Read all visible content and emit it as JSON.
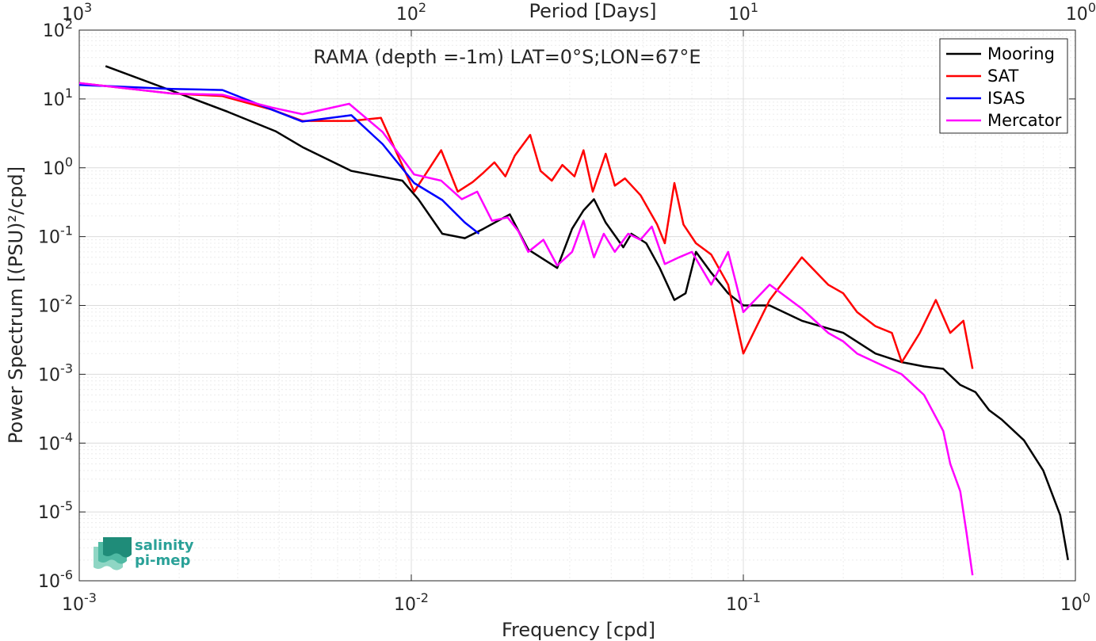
{
  "chart_data": {
    "type": "line",
    "title": "RAMA (depth =-1m) LAT=0°S;LON=67°E",
    "xlabel": "Frequency [cpd]",
    "ylabel": "Power Spectrum [(PSU)²/cpd]",
    "top_xlabel": "Period [Days]",
    "x_scale": "log",
    "y_scale": "log",
    "xlim": [
      0.001,
      1
    ],
    "ylim": [
      1e-06,
      100
    ],
    "grid": true,
    "legend_position": "top-right",
    "x_ticks": [
      "10-3",
      "10-2",
      "10-1",
      "100"
    ],
    "top_ticks": [
      "103",
      "102",
      "101",
      "100"
    ],
    "y_ticks": [
      "10-6",
      "10-5",
      "10-4",
      "10-3",
      "10-2",
      "10-1",
      "100",
      "101",
      "102"
    ],
    "series": [
      {
        "name": "Mooring",
        "color": "#000000",
        "x": [
          0.0012,
          0.002,
          0.0028,
          0.0039,
          0.0047,
          0.0066,
          0.0094,
          0.0105,
          0.0124,
          0.0145,
          0.0165,
          0.0198,
          0.0225,
          0.0275,
          0.0305,
          0.033,
          0.0355,
          0.0385,
          0.0435,
          0.046,
          0.051,
          0.056,
          0.062,
          0.067,
          0.072,
          0.08,
          0.09,
          0.1,
          0.12,
          0.15,
          0.2,
          0.25,
          0.3,
          0.35,
          0.4,
          0.45,
          0.5,
          0.55,
          0.6,
          0.7,
          0.8,
          0.9,
          0.95
        ],
        "y": [
          30,
          12,
          6.5,
          3.4,
          2.0,
          0.9,
          0.65,
          0.35,
          0.11,
          0.095,
          0.13,
          0.21,
          0.065,
          0.035,
          0.13,
          0.24,
          0.35,
          0.16,
          0.07,
          0.11,
          0.08,
          0.035,
          0.012,
          0.015,
          0.06,
          0.03,
          0.015,
          0.01,
          0.01,
          0.006,
          0.004,
          0.002,
          0.0015,
          0.0013,
          0.0012,
          0.0007,
          0.00055,
          0.0003,
          0.00022,
          0.00011,
          4e-05,
          9e-06,
          2e-06
        ]
      },
      {
        "name": "SAT",
        "color": "#ff0000",
        "x": [
          0.001,
          0.0019,
          0.0027,
          0.0038,
          0.0047,
          0.0066,
          0.0081,
          0.0102,
          0.0123,
          0.0138,
          0.0153,
          0.0165,
          0.0178,
          0.0192,
          0.0205,
          0.0228,
          0.0245,
          0.0265,
          0.0285,
          0.031,
          0.033,
          0.0352,
          0.0385,
          0.041,
          0.044,
          0.049,
          0.055,
          0.058,
          0.062,
          0.066,
          0.072,
          0.08,
          0.09,
          0.1,
          0.12,
          0.15,
          0.18,
          0.2,
          0.22,
          0.25,
          0.28,
          0.3,
          0.34,
          0.38,
          0.42,
          0.46,
          0.49
        ],
        "y": [
          17,
          12,
          11,
          7,
          4.8,
          4.8,
          5.3,
          0.45,
          1.8,
          0.45,
          0.62,
          0.85,
          1.2,
          0.75,
          1.5,
          3.0,
          0.9,
          0.65,
          1.1,
          0.75,
          1.8,
          0.45,
          1.6,
          0.55,
          0.7,
          0.4,
          0.15,
          0.08,
          0.6,
          0.15,
          0.08,
          0.055,
          0.02,
          0.002,
          0.012,
          0.05,
          0.02,
          0.015,
          0.008,
          0.005,
          0.004,
          0.0015,
          0.004,
          0.012,
          0.004,
          0.006,
          0.0012
        ]
      },
      {
        "name": "ISAS",
        "color": "#0000ff",
        "x": [
          0.001,
          0.0019,
          0.0027,
          0.0038,
          0.0047,
          0.0066,
          0.0082,
          0.0102,
          0.0124,
          0.0145,
          0.016
        ],
        "y": [
          16,
          14,
          13.5,
          7,
          4.7,
          5.8,
          2.2,
          0.6,
          0.34,
          0.16,
          0.11
        ]
      },
      {
        "name": "Mercator",
        "color": "#ff00ff",
        "x": [
          0.001,
          0.0019,
          0.0027,
          0.0038,
          0.0047,
          0.0065,
          0.0082,
          0.0102,
          0.0123,
          0.0142,
          0.0158,
          0.0175,
          0.0195,
          0.021,
          0.0225,
          0.025,
          0.0275,
          0.0305,
          0.033,
          0.0355,
          0.038,
          0.041,
          0.045,
          0.049,
          0.053,
          0.058,
          0.064,
          0.07,
          0.08,
          0.09,
          0.1,
          0.12,
          0.15,
          0.18,
          0.2,
          0.22,
          0.25,
          0.3,
          0.35,
          0.4,
          0.42,
          0.45,
          0.47,
          0.49
        ],
        "y": [
          17,
          12,
          11.5,
          7.5,
          6,
          8.5,
          3.3,
          0.8,
          0.65,
          0.35,
          0.45,
          0.17,
          0.19,
          0.12,
          0.06,
          0.09,
          0.038,
          0.06,
          0.17,
          0.05,
          0.11,
          0.06,
          0.11,
          0.09,
          0.14,
          0.04,
          0.05,
          0.06,
          0.02,
          0.06,
          0.008,
          0.02,
          0.009,
          0.004,
          0.003,
          0.002,
          0.0015,
          0.001,
          0.0005,
          0.00015,
          5e-05,
          2e-05,
          5e-06,
          1.2e-06
        ]
      }
    ]
  },
  "logo": {
    "line1": "salinity",
    "line2": "pi-mep",
    "color": "#2aa198"
  }
}
